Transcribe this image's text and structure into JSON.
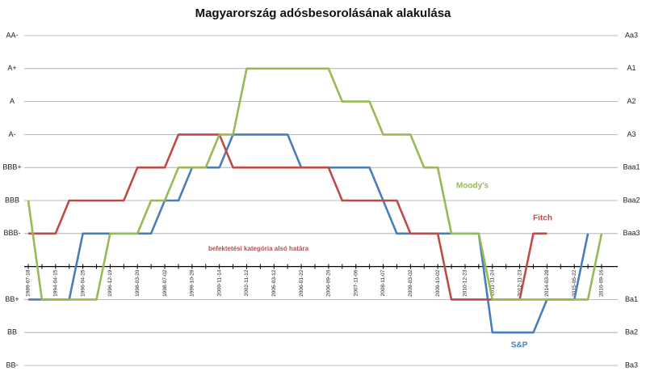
{
  "chart_data": {
    "type": "line",
    "title": "Magyarország adósbesorolásának alakulása",
    "categories": [
      "1989-07-18",
      null,
      "1994-04-15",
      null,
      "1996-04-25",
      null,
      "1996-12-19",
      null,
      "1998-03-20",
      null,
      "1998-07-02",
      null,
      "1999-10-29",
      null,
      "2000-11-14",
      null,
      "2002-11-12",
      null,
      "2005-03-12",
      null,
      "2006-01-22",
      null,
      "2006-09-26",
      null,
      "2007-11-06",
      null,
      "2008-11-07",
      null,
      "2009-03-02",
      null,
      "2009-10-02",
      null,
      "2010-12-23",
      null,
      "2011-11-24",
      null,
      "2012-11-23",
      null,
      "2014-03-28",
      null,
      "2015-05-22",
      null,
      "2016-09-16"
    ],
    "series": [
      {
        "name": "S&P",
        "color": "#4a7ebb",
        "values": [
          3,
          3,
          3,
          3,
          5,
          5,
          5,
          5,
          5,
          5,
          6,
          6,
          7,
          7,
          7,
          8,
          8,
          8,
          8,
          8,
          7,
          7,
          7,
          7,
          7,
          7,
          6,
          5,
          5,
          5,
          5,
          5,
          5,
          5,
          2,
          2,
          2,
          2,
          3,
          3,
          3,
          5,
          null
        ]
      },
      {
        "name": "Fitch",
        "color": "#be4b48",
        "values": [
          5,
          5,
          5,
          6,
          6,
          6,
          6,
          6,
          7,
          7,
          7,
          8,
          8,
          8,
          8,
          7,
          7,
          7,
          7,
          7,
          7,
          7,
          7,
          6,
          6,
          6,
          6,
          6,
          5,
          5,
          5,
          3,
          3,
          3,
          3,
          3,
          3,
          5,
          5,
          null,
          null,
          null,
          null
        ]
      },
      {
        "name": "Moody's",
        "color": "#98b954",
        "axis": "y2",
        "values": [
          6,
          3,
          3,
          3,
          3,
          3,
          5,
          5,
          5,
          6,
          6,
          7,
          7,
          7,
          8,
          8,
          10,
          10,
          10,
          10,
          10,
          10,
          10,
          9,
          9,
          9,
          8,
          8,
          8,
          7,
          7,
          5,
          5,
          5,
          3,
          3,
          3,
          3,
          3,
          3,
          3,
          3,
          5
        ]
      }
    ],
    "annotations": [
      "befektetési kategória alsó határa"
    ],
    "ylim": [
      1,
      11
    ],
    "yticks": [
      {
        "value": 11,
        "label": "AA-"
      },
      {
        "value": 10,
        "label": "A+"
      },
      {
        "value": 9,
        "label": "A"
      },
      {
        "value": 8,
        "label": "A-"
      },
      {
        "value": 7,
        "label": "BBB+"
      },
      {
        "value": 6,
        "label": "BBB"
      },
      {
        "value": 5,
        "label": "BBB-"
      },
      {
        "value": 3,
        "label": "BB+"
      },
      {
        "value": 2,
        "label": "BB"
      },
      {
        "value": 1,
        "label": "BB-"
      }
    ],
    "y2lim": [
      1,
      11
    ],
    "y2ticks": [
      {
        "value": 11,
        "label": "Aa3"
      },
      {
        "value": 10,
        "label": "A1"
      },
      {
        "value": 9,
        "label": "A2"
      },
      {
        "value": 8,
        "label": "A3"
      },
      {
        "value": 7,
        "label": "Baa1"
      },
      {
        "value": 6,
        "label": "Baa2"
      },
      {
        "value": 5,
        "label": "Baa3"
      },
      {
        "value": 3,
        "label": "Ba1"
      },
      {
        "value": 2,
        "label": "Ba2"
      },
      {
        "value": 1,
        "label": "Ba3"
      }
    ],
    "grid": true
  }
}
